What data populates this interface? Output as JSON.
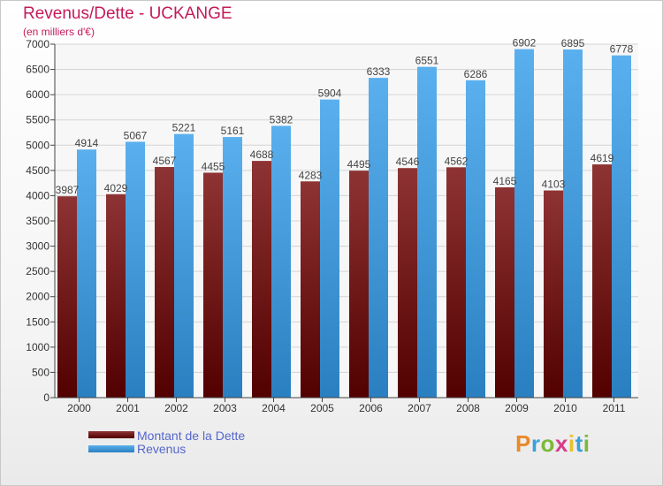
{
  "chart_data": {
    "type": "bar",
    "title": "Revenus/Dette - UCKANGE",
    "subtitle": "(en milliers d'€)",
    "categories": [
      "2000",
      "2001",
      "2002",
      "2003",
      "2004",
      "2005",
      "2006",
      "2007",
      "2008",
      "2009",
      "2010",
      "2011"
    ],
    "series": [
      {
        "name": "Montant de la Dette",
        "color": "#7a1a1a",
        "values": [
          3987,
          4029,
          4567,
          4455,
          4688,
          4283,
          4495,
          4546,
          4562,
          4165,
          4103,
          4619
        ]
      },
      {
        "name": "Revenus",
        "color": "#4aa3e3",
        "values": [
          4914,
          5067,
          5221,
          5161,
          5382,
          5904,
          6333,
          6551,
          6286,
          6902,
          6895,
          6778
        ]
      }
    ],
    "ylim": [
      0,
      7000
    ],
    "yticks": [
      0,
      500,
      1000,
      1500,
      2000,
      2500,
      3000,
      3500,
      4000,
      4500,
      5000,
      5500,
      6000,
      6500,
      7000
    ],
    "grid": true,
    "legend_position": "bottom-left"
  },
  "branding": {
    "logo_text": "Proxiti"
  }
}
